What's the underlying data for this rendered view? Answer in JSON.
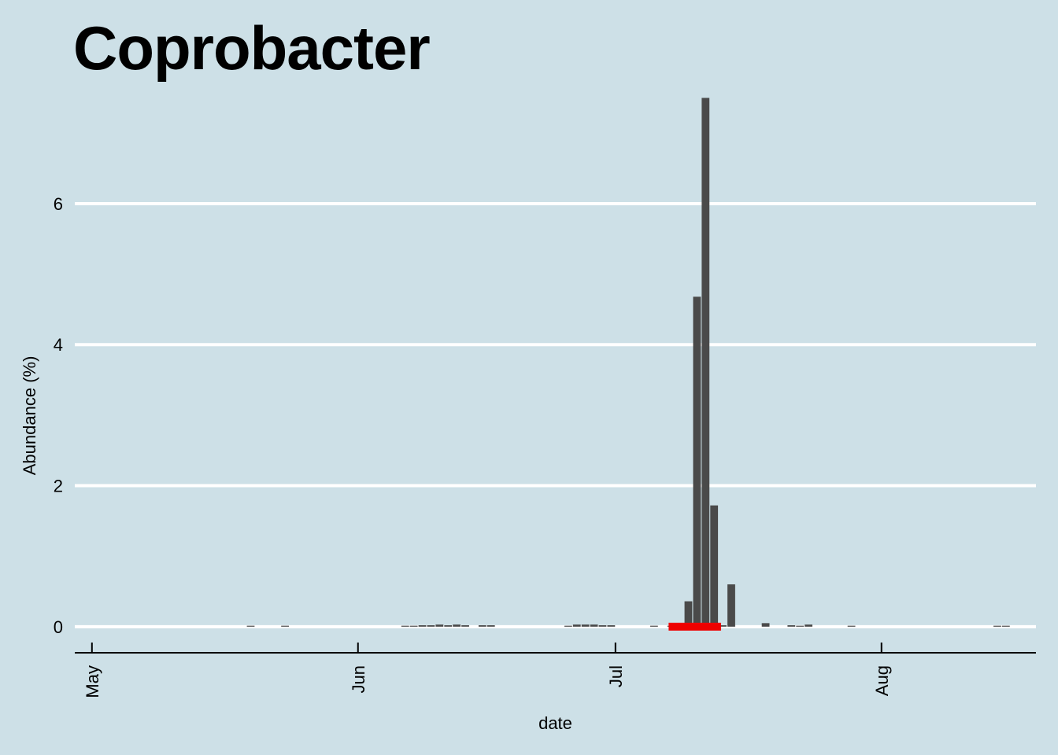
{
  "chart_data": {
    "type": "bar",
    "title": "Coprobacter",
    "xlabel": "date",
    "ylabel": "Abundance (%)",
    "background_color": "#cde0e7",
    "bar_color": "#4a4a4a",
    "highlight_color": "#ee0000",
    "grid": "horizontal major lines, white",
    "xlim": [
      "2021-04-29",
      "2021-08-19"
    ],
    "ylim": [
      -0.37,
      7.55
    ],
    "x_ticks": [
      {
        "date": "2021-05-01",
        "label": "May"
      },
      {
        "date": "2021-06-01",
        "label": "Jun"
      },
      {
        "date": "2021-07-01",
        "label": "Jul"
      },
      {
        "date": "2021-08-01",
        "label": "Aug"
      }
    ],
    "y_ticks": [
      0,
      2,
      4,
      6
    ],
    "series": [
      {
        "x": [
          "2021-05-19",
          "2021-05-23",
          "2021-06-06",
          "2021-06-07",
          "2021-06-08",
          "2021-06-09",
          "2021-06-10",
          "2021-06-11",
          "2021-06-12",
          "2021-06-13",
          "2021-06-15",
          "2021-06-16",
          "2021-06-25",
          "2021-06-26",
          "2021-06-27",
          "2021-06-28",
          "2021-06-29",
          "2021-06-30",
          "2021-07-05",
          "2021-07-07",
          "2021-07-08",
          "2021-07-09",
          "2021-07-10",
          "2021-07-11",
          "2021-07-12",
          "2021-07-13",
          "2021-07-14",
          "2021-07-18",
          "2021-07-21",
          "2021-07-22",
          "2021-07-23",
          "2021-07-28",
          "2021-08-14",
          "2021-08-15"
        ],
        "values": [
          0.01,
          0.01,
          0.01,
          0.01,
          0.02,
          0.02,
          0.03,
          0.02,
          0.03,
          0.02,
          0.02,
          0.02,
          0.01,
          0.03,
          0.03,
          0.03,
          0.02,
          0.02,
          0.01,
          0.01,
          0.02,
          0.36,
          4.68,
          7.5,
          1.72,
          0.02,
          0.6,
          0.05,
          0.02,
          0.01,
          0.03,
          0.01,
          0.01,
          0.01
        ]
      }
    ],
    "highlight_range": [
      "2021-07-07",
      "2021-07-13"
    ]
  }
}
